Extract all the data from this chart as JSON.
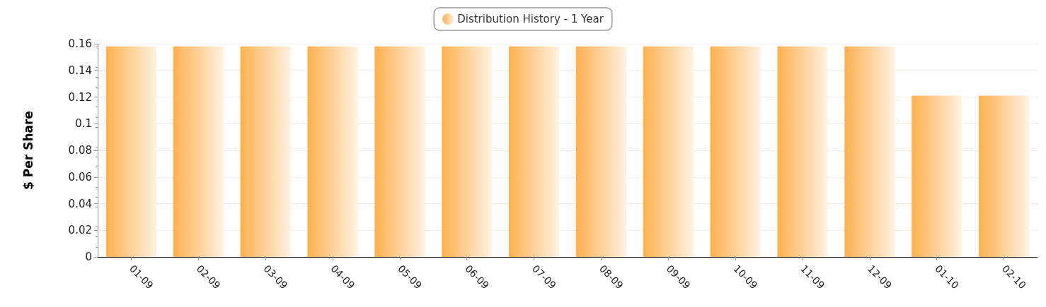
{
  "chart_data": {
    "type": "bar",
    "ylabel": "$ Per Share",
    "categories": [
      "01-09",
      "02-09",
      "03-09",
      "04-09",
      "05-09",
      "06-09",
      "07-09",
      "08-09",
      "09-09",
      "10-09",
      "11-09",
      "12-09",
      "01-10",
      "02-10"
    ],
    "series": [
      {
        "name": "Distribution History - 1 Year",
        "color": "#ffb04f",
        "values": [
          0.158,
          0.158,
          0.158,
          0.158,
          0.158,
          0.158,
          0.158,
          0.158,
          0.158,
          0.158,
          0.158,
          0.158,
          0.121,
          0.121
        ]
      }
    ],
    "ylim": [
      0,
      0.16
    ],
    "yticks": [
      0,
      0.02,
      0.04,
      0.06,
      0.08,
      0.1,
      0.12,
      0.14,
      0.16
    ],
    "grid": "y",
    "legend": "top"
  }
}
